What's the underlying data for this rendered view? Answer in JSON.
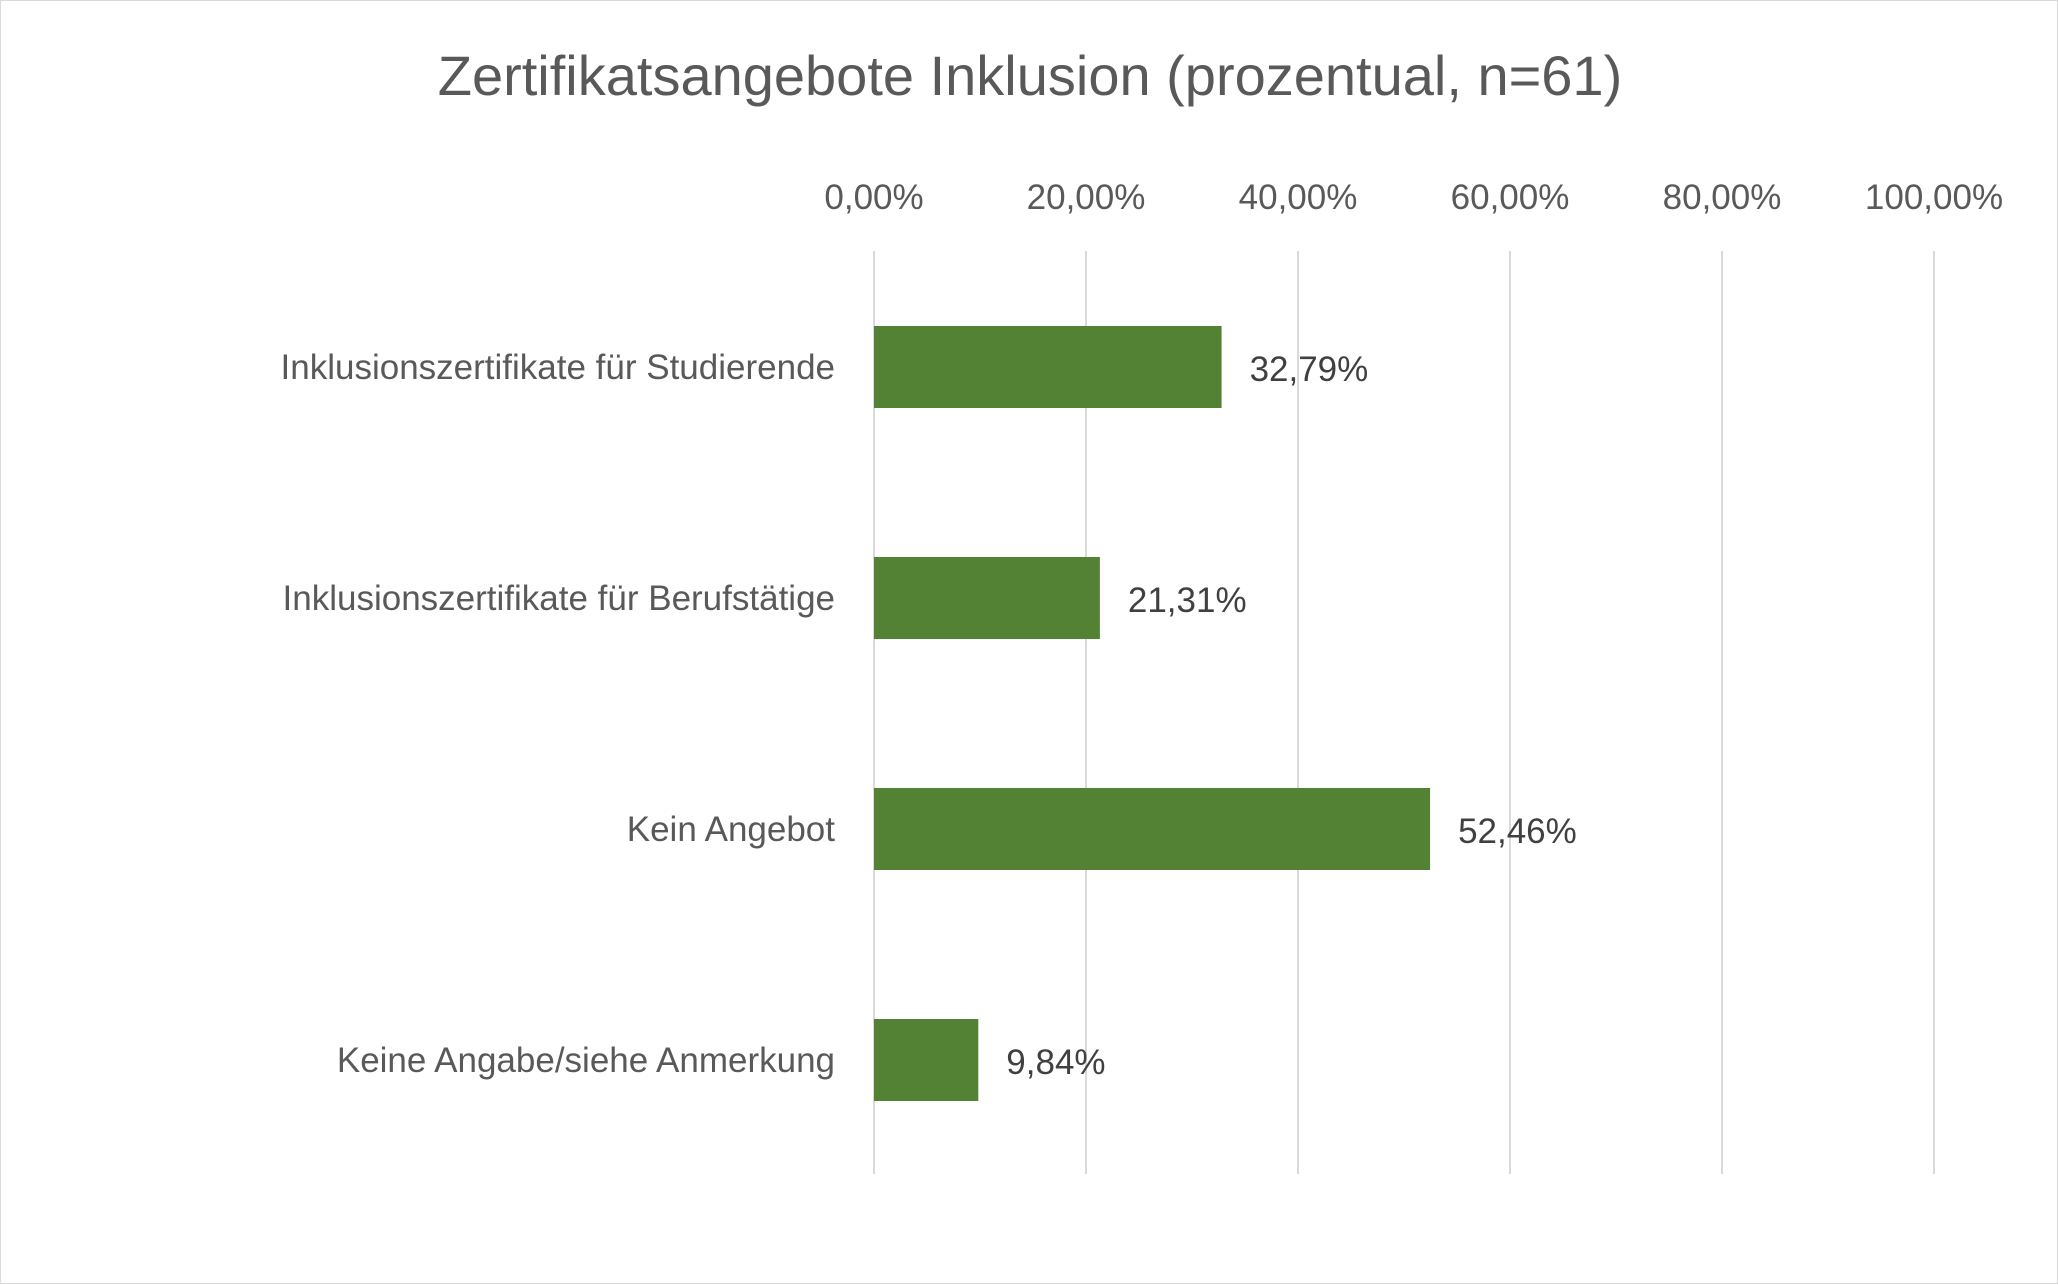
{
  "chart_data": {
    "type": "bar",
    "orientation": "horizontal",
    "title": "Zertifikatsangebote Inklusion (prozentual, n=61)",
    "categories": [
      "Inklusionszertifikate für Studierende",
      "Inklusionszertifikate für Berufstätige",
      "Kein Angebot",
      "Keine Angabe/siehe Anmerkung"
    ],
    "values": [
      32.79,
      21.31,
      52.46,
      9.84
    ],
    "value_labels": [
      "32,79%",
      "21,31%",
      "52,46%",
      "9,84%"
    ],
    "xlim": [
      0,
      100
    ],
    "x_ticks": [
      0,
      20,
      40,
      60,
      80,
      100
    ],
    "x_tick_labels": [
      "0,00%",
      "20,00%",
      "40,00%",
      "60,00%",
      "80,00%",
      "100,00%"
    ],
    "axis_position": "top",
    "grid": true,
    "legend": "none",
    "colors": {
      "bar": "#548235",
      "grid": "#d9d9d9",
      "text": "#595959"
    }
  }
}
